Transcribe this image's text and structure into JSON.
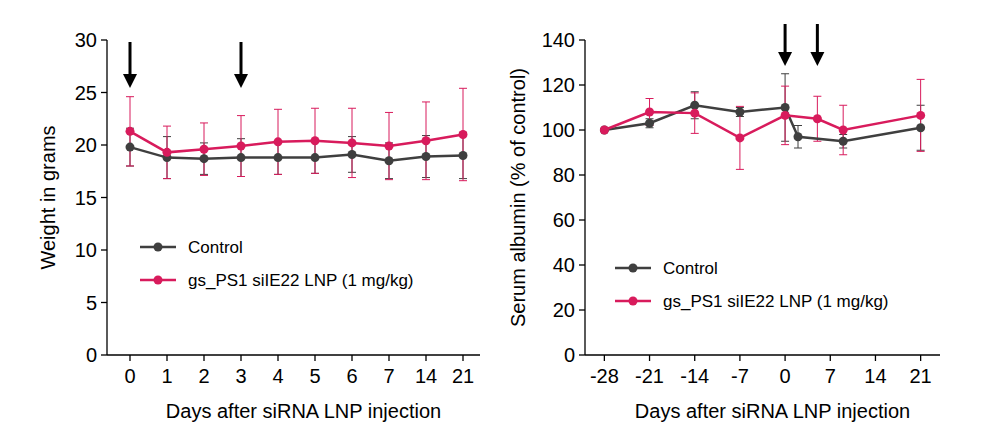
{
  "chart_data": [
    {
      "type": "line",
      "x_label": "Days after siRNA LNP injection",
      "y_label": "Weight in grams",
      "categories": [
        "0",
        "1",
        "2",
        "3",
        "4",
        "5",
        "6",
        "7",
        "14",
        "21"
      ],
      "ylim": [
        0,
        30
      ],
      "yticks": [
        0,
        5,
        10,
        15,
        20,
        25,
        30
      ],
      "legend": "lower left",
      "marker": "circle",
      "arrows": [
        0,
        3
      ],
      "series": [
        {
          "name": "Control",
          "color": "#3f3f3f",
          "values": [
            19.8,
            18.8,
            18.7,
            18.8,
            18.8,
            18.8,
            19.1,
            18.5,
            18.9,
            19.0
          ],
          "errors": [
            1.8,
            2.0,
            1.5,
            1.8,
            1.6,
            1.5,
            1.7,
            1.7,
            2.0,
            2.2
          ]
        },
        {
          "name": "gs_PS1 siIE22 LNP (1 mg/kg)",
          "color": "#d81b5c",
          "values": [
            21.3,
            19.3,
            19.6,
            19.9,
            20.3,
            20.4,
            20.2,
            19.9,
            20.4,
            21.0
          ],
          "errors": [
            3.3,
            2.5,
            2.5,
            2.9,
            3.1,
            3.1,
            3.3,
            3.2,
            3.7,
            4.4
          ]
        }
      ]
    },
    {
      "type": "line",
      "x_label": "Days after siRNA LNP injection",
      "y_label": "Serum albumin (% of control)",
      "xlim": [
        -31,
        24
      ],
      "xticks": [
        -28,
        -21,
        -14,
        -7,
        0,
        7,
        14,
        21
      ],
      "ylim": [
        0,
        140
      ],
      "yticks": [
        0,
        20,
        40,
        60,
        80,
        100,
        120,
        140
      ],
      "legend": "lower left",
      "marker": "circle",
      "arrows": [
        0,
        5
      ],
      "series": [
        {
          "name": "Control",
          "color": "#3f3f3f",
          "x": [
            -28,
            -21,
            -14,
            -7,
            0,
            2,
            9,
            21
          ],
          "values": [
            100,
            103,
            111,
            108,
            110,
            97,
            95,
            101
          ],
          "errors": [
            0,
            2,
            6,
            2,
            15,
            5,
            3,
            10
          ]
        },
        {
          "name": "gs_PS1 siIE22 LNP (1 mg/kg)",
          "color": "#d81b5c",
          "x": [
            -28,
            -21,
            -14,
            -7,
            0,
            5,
            9,
            21
          ],
          "values": [
            100,
            108,
            107.5,
            96.5,
            106.5,
            105,
            100,
            106.5
          ],
          "errors": [
            0,
            6,
            9,
            14,
            13,
            10,
            11,
            16
          ]
        }
      ]
    }
  ]
}
